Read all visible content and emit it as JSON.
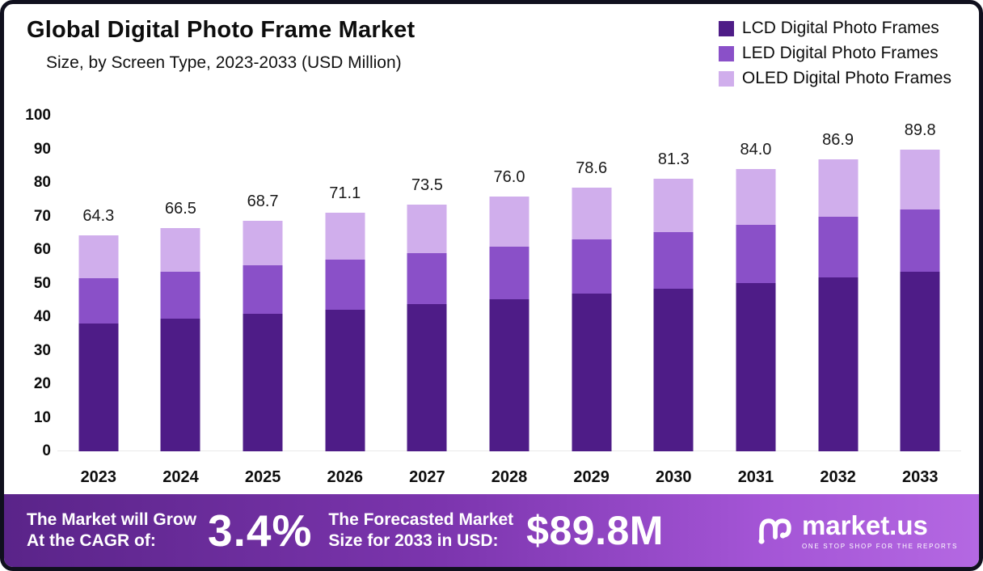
{
  "header": {
    "title": "Global Digital Photo Frame Market",
    "subtitle": "Size, by Screen Type, 2023-2033 (USD Million)"
  },
  "legend": [
    {
      "label": "LCD Digital Photo Frames",
      "color": "#4e1c87"
    },
    {
      "label": "LED Digital Photo Frames",
      "color": "#8a50c8"
    },
    {
      "label": "OLED Digital Photo Frames",
      "color": "#d0aeec"
    }
  ],
  "chart_data": {
    "type": "bar",
    "stacked": true,
    "title": "Global Digital Photo Frame Market",
    "subtitle": "Size, by Screen Type, 2023-2033 (USD Million)",
    "xlabel": "",
    "ylabel": "",
    "ylim": [
      0,
      100
    ],
    "yticks": [
      0,
      10,
      20,
      30,
      40,
      50,
      60,
      70,
      80,
      90,
      100
    ],
    "grid": false,
    "legend_position": "top-right",
    "categories": [
      "2023",
      "2024",
      "2025",
      "2026",
      "2027",
      "2028",
      "2029",
      "2030",
      "2031",
      "2032",
      "2033"
    ],
    "series": [
      {
        "name": "LCD Digital Photo Frames",
        "color": "#4e1c87",
        "values": [
          38.0,
          39.5,
          41.0,
          42.2,
          43.8,
          45.2,
          47.0,
          48.5,
          50.2,
          51.8,
          53.5
        ]
      },
      {
        "name": "LED Digital Photo Frames",
        "color": "#8a50c8",
        "values": [
          13.5,
          14.0,
          14.4,
          14.9,
          15.2,
          15.8,
          16.2,
          16.8,
          17.3,
          18.0,
          18.5
        ]
      },
      {
        "name": "OLED Digital Photo Frames",
        "color": "#d0aeec",
        "values": [
          12.8,
          13.0,
          13.3,
          14.0,
          14.5,
          15.0,
          15.4,
          16.0,
          16.5,
          17.1,
          17.8
        ]
      }
    ],
    "totals": [
      "64.3",
      "66.5",
      "68.7",
      "71.1",
      "73.5",
      "76.0",
      "78.6",
      "81.3",
      "84.0",
      "86.9",
      "89.8"
    ]
  },
  "footer": {
    "cagr_label": "The Market will Grow\nAt the CAGR of:",
    "cagr_value": "3.4%",
    "forecast_label": "The Forecasted Market\nSize for 2033 in USD:",
    "forecast_value": "$89.8M",
    "brand": "market.us",
    "brand_tagline": "ONE STOP SHOP FOR THE REPORTS"
  }
}
